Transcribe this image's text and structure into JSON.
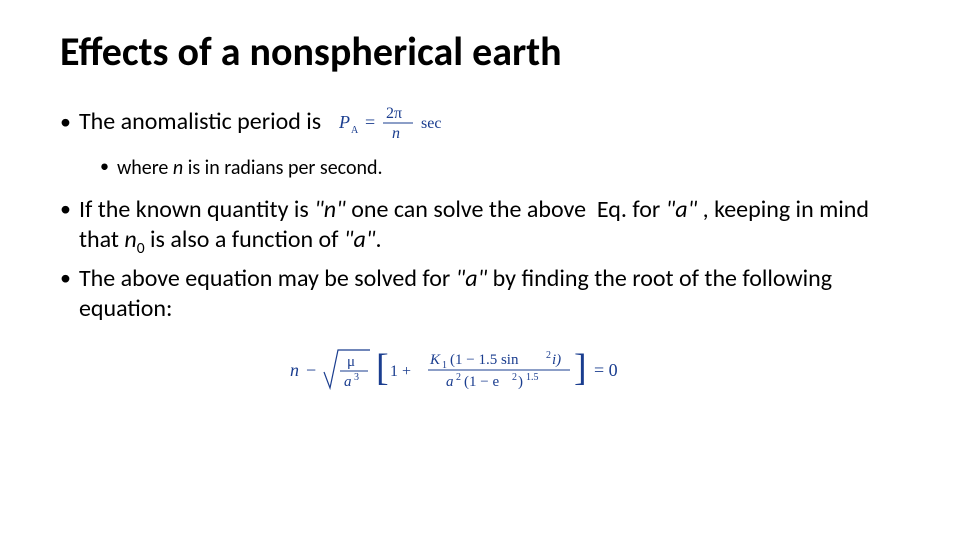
{
  "title": "Effects of a nonspherical earth",
  "bullet1_pre": "The anomalistic period is",
  "bullet2": "where n is in radians per second.",
  "bullet3_html": "If the known quantity is <span class=\"q\">\"n\"</span> one can solve the above&nbsp;&nbsp;Eq. for <span class=\"q\">\"a\"</span> , keeping in mind that <span class=\"q\">n</span><span class=\"sub\">0</span> is also a function of <span class=\"q\">\"a\"</span>.",
  "bullet4_html": "The above equation may be solved for <span class=\"q\">\"a\"</span> by finding the root of the following equation:",
  "formula1": {
    "lhs": "P",
    "lhs_sub": "A",
    "eq": "=",
    "num": "2π",
    "den": "n",
    "unit": "sec",
    "color": "#1a3d8f"
  },
  "formula2": {
    "color": "#1a3d8f",
    "pre": "n −",
    "sqrt_num": "μ",
    "sqrt_den": "a",
    "sqrt_den_exp": "3",
    "br_open": "[",
    "one_plus": "1 +",
    "k_num_left": "K",
    "k_num_left_sub": "1",
    "k_num_right": "(1 − 1.5 sin",
    "k_num_right_exp": "2",
    "k_num_right_tail": "i)",
    "k_den_left": "a",
    "k_den_left_exp": "2",
    "k_den_mid": "(1 − e",
    "k_den_mid_exp": "2",
    "k_den_mid_close": ")",
    "k_den_tail_exp": "1.5",
    "br_close": "]",
    "rhs": "= 0"
  },
  "style": {
    "title_fontsize": 40,
    "body_fontsize": 24,
    "sub_fontsize": 20,
    "formula_color": "#1a3d8f",
    "text_color": "#000000",
    "bg_color": "#ffffff"
  }
}
